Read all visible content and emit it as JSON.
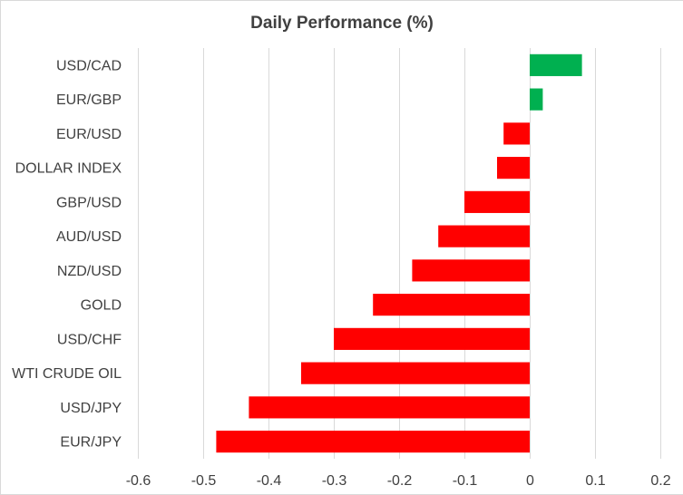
{
  "chart_data": {
    "type": "bar",
    "orientation": "horizontal",
    "title": "Daily Performance  (%)",
    "xlabel": "",
    "ylabel": "",
    "categories": [
      "USD/CAD",
      "EUR/GBP",
      "EUR/USD",
      "DOLLAR INDEX",
      "GBP/USD",
      "AUD/USD",
      "NZD/USD",
      "GOLD",
      "USD/CHF",
      "WTI CRUDE OIL",
      "USD/JPY",
      "EUR/JPY"
    ],
    "values": [
      0.08,
      0.02,
      -0.04,
      -0.05,
      -0.1,
      -0.14,
      -0.18,
      -0.24,
      -0.3,
      -0.35,
      -0.43,
      -0.48
    ],
    "xlim": [
      -0.6,
      0.2
    ],
    "xticks": [
      -0.6,
      -0.5,
      -0.4,
      -0.3,
      -0.2,
      -0.1,
      0,
      0.1,
      0.2
    ],
    "xtick_labels": [
      "-0.6",
      "-0.5",
      "-0.4",
      "-0.3",
      "-0.2",
      "-0.1",
      "0",
      "0.1",
      "0.2"
    ],
    "grid": true,
    "legend": "none",
    "colors": {
      "positive": "#00b050",
      "negative": "#ff0000",
      "grid": "#d9d9d9",
      "text": "#404040"
    }
  }
}
